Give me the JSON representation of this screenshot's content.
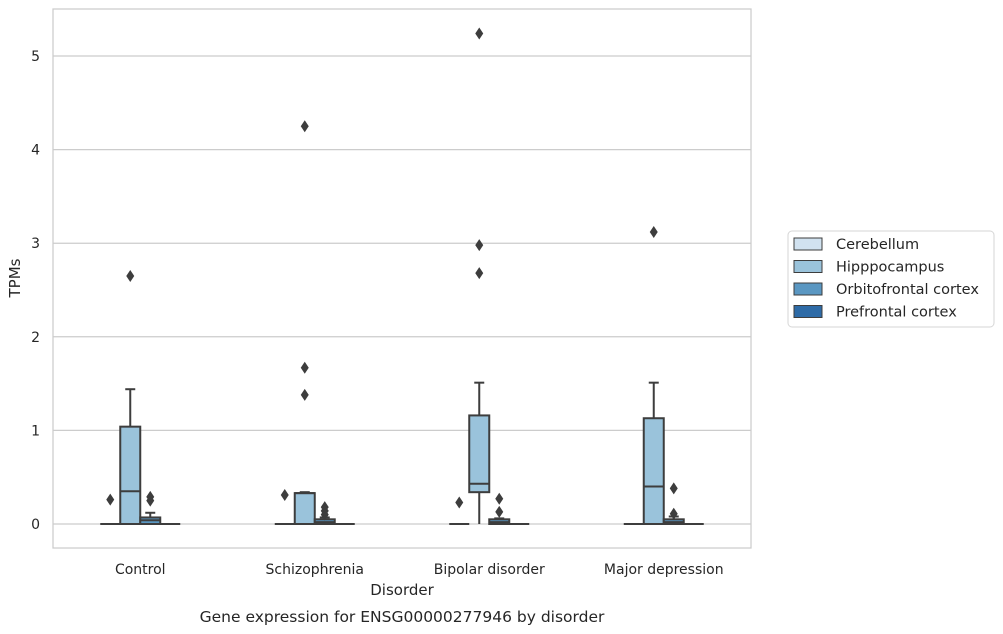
{
  "caption": "Gene expression for ENSG00000277946 by disorder",
  "chart_data": {
    "type": "box",
    "xlabel": "Disorder",
    "ylabel": "TPMs",
    "ylim": [
      -0.25,
      5.5
    ],
    "yticks": [
      0,
      1,
      2,
      3,
      4,
      5
    ],
    "grid": "horizontal",
    "legend_placement": "right",
    "categories": [
      "Control",
      "Schizophrenia",
      "Bipolar disorder",
      "Major depression"
    ],
    "series": [
      {
        "name": "Cerebellum",
        "color": "#d1e2f0",
        "boxes": [
          {
            "q1": 0,
            "median": 0,
            "q3": 0,
            "whisker_low": 0,
            "whisker_high": 0,
            "outliers": [
              0.26
            ]
          },
          {
            "q1": 0,
            "median": 0,
            "q3": 0,
            "whisker_low": 0,
            "whisker_high": 0,
            "outliers": [
              0.31
            ]
          },
          {
            "q1": 0,
            "median": 0,
            "q3": 0,
            "whisker_low": 0,
            "whisker_high": 0,
            "outliers": [
              0.23
            ]
          },
          {
            "q1": 0,
            "median": 0,
            "q3": 0,
            "whisker_low": 0,
            "whisker_high": 0,
            "outliers": []
          }
        ]
      },
      {
        "name": "Hipppocampus",
        "color": "#9ac3db",
        "boxes": [
          {
            "q1": 0,
            "median": 0.35,
            "q3": 1.04,
            "whisker_low": 0,
            "whisker_high": 1.44,
            "outliers": [
              2.65
            ]
          },
          {
            "q1": 0,
            "median": 0.33,
            "q3": 0.33,
            "whisker_low": 0,
            "whisker_high": 0.34,
            "outliers": [
              1.38,
              1.67,
              4.25
            ]
          },
          {
            "q1": 0.34,
            "median": 0.43,
            "q3": 1.16,
            "whisker_low": 0,
            "whisker_high": 1.51,
            "outliers": [
              2.68,
              2.98,
              5.24
            ]
          },
          {
            "q1": 0,
            "median": 0.4,
            "q3": 1.13,
            "whisker_low": 0,
            "whisker_high": 1.51,
            "outliers": [
              3.12
            ]
          }
        ]
      },
      {
        "name": "Orbitofrontal cortex",
        "color": "#5a97c2",
        "boxes": [
          {
            "q1": 0,
            "median": 0.04,
            "q3": 0.07,
            "whisker_low": 0,
            "whisker_high": 0.12,
            "outliers": [
              0.25,
              0.29
            ]
          },
          {
            "q1": 0,
            "median": 0.02,
            "q3": 0.05,
            "whisker_low": 0,
            "whisker_high": 0.07,
            "outliers": [
              0.1,
              0.14,
              0.18
            ]
          },
          {
            "q1": 0,
            "median": 0.02,
            "q3": 0.05,
            "whisker_low": 0,
            "whisker_high": 0.06,
            "outliers": [
              0.13,
              0.27
            ]
          },
          {
            "q1": 0,
            "median": 0.02,
            "q3": 0.05,
            "whisker_low": 0,
            "whisker_high": 0.08,
            "outliers": [
              0.11,
              0.38
            ]
          }
        ]
      },
      {
        "name": "Prefrontal cortex",
        "color": "#2e6ba7",
        "boxes": [
          {
            "q1": 0,
            "median": 0,
            "q3": 0,
            "whisker_low": 0,
            "whisker_high": 0,
            "outliers": []
          },
          {
            "q1": 0,
            "median": 0,
            "q3": 0,
            "whisker_low": 0,
            "whisker_high": 0,
            "outliers": []
          },
          {
            "q1": 0,
            "median": 0,
            "q3": 0,
            "whisker_low": 0,
            "whisker_high": 0,
            "outliers": []
          },
          {
            "q1": 0,
            "median": 0,
            "q3": 0,
            "whisker_low": 0,
            "whisker_high": 0,
            "outliers": []
          }
        ]
      }
    ]
  }
}
